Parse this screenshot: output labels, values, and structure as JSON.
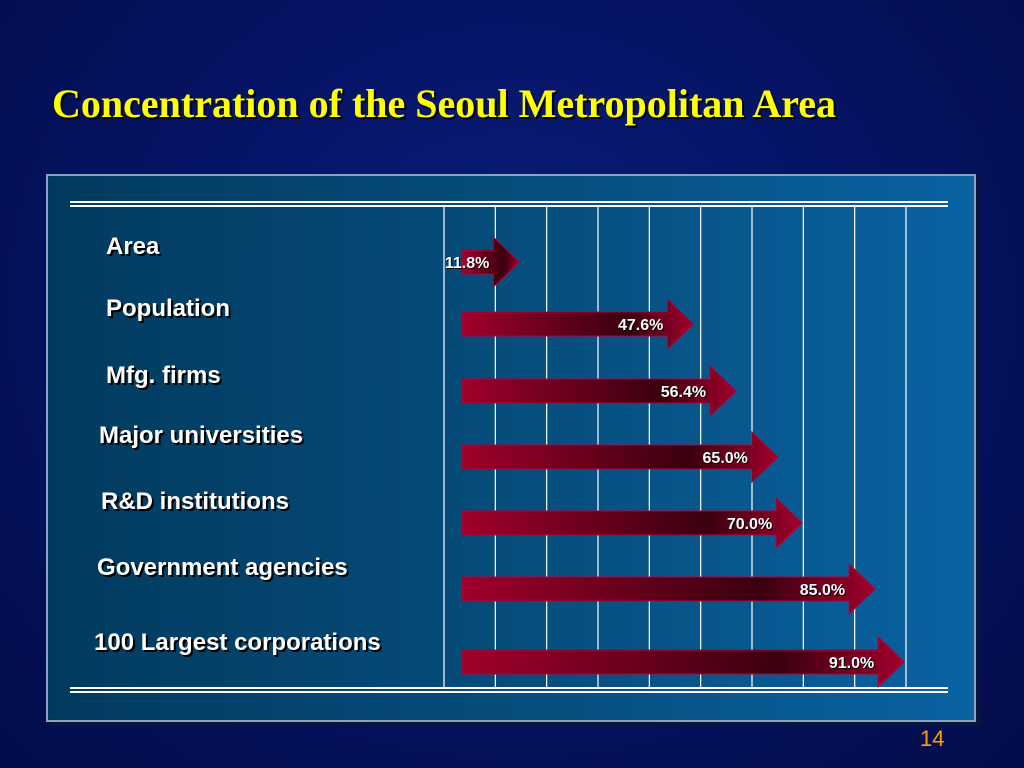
{
  "slide": {
    "title": "Concentration of the Seoul Metropolitan Area",
    "page_number": "14"
  },
  "colors": {
    "title": "#ffff00",
    "bar_dark": "#3a0010",
    "bar_bright": "#a0002a",
    "page_number": "#ffa000"
  },
  "chart_data": {
    "type": "bar",
    "orientation": "horizontal",
    "title": "Concentration of the Seoul Metropolitan Area",
    "categories": [
      "Area",
      "Population",
      "Mfg. firms",
      "Major universities",
      "R&D institutions",
      "Government agencies",
      "100 Largest corporations"
    ],
    "values": [
      11.8,
      47.6,
      56.4,
      65.0,
      70.0,
      85.0,
      91.0
    ],
    "value_labels": [
      "11.8%",
      "47.6%",
      "56.4%",
      "65.0%",
      "70.0%",
      "85.0%",
      "91.0%"
    ],
    "xlim": [
      0,
      100
    ],
    "grid": true,
    "legend": "none"
  }
}
